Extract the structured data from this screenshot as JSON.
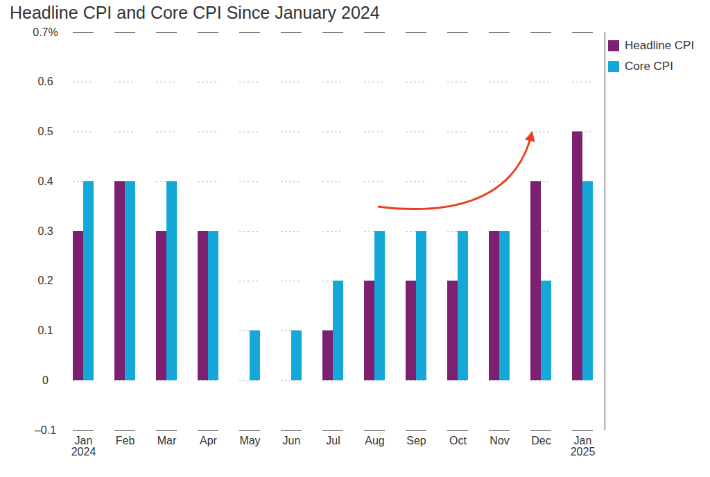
{
  "chart_data": {
    "type": "bar",
    "title": "Headline CPI and Core CPI Since January 2024",
    "categories": [
      "Jan 2024",
      "Feb",
      "Mar",
      "Apr",
      "May",
      "Jun",
      "Jul",
      "Aug",
      "Sep",
      "Oct",
      "Nov",
      "Dec",
      "Jan 2025"
    ],
    "series": [
      {
        "name": "Headline CPI",
        "color": "#7b2170",
        "values": [
          0.3,
          0.4,
          0.3,
          0.3,
          0,
          0,
          0.1,
          0.2,
          0.2,
          0.2,
          0.3,
          0.4,
          0.5
        ]
      },
      {
        "name": "Core CPI",
        "color": "#14a8d9",
        "values": [
          0.4,
          0.4,
          0.4,
          0.3,
          0.1,
          0.1,
          0.2,
          0.3,
          0.3,
          0.3,
          0.3,
          0.2,
          0.4
        ]
      }
    ],
    "ylim": [
      -0.1,
      0.7
    ],
    "yticks": [
      {
        "value": -0.1,
        "label": "–0.1"
      },
      0,
      0.1,
      0.2,
      0.3,
      0.4,
      0.5,
      0.6,
      {
        "value": 0.7,
        "label": "0.7%"
      }
    ],
    "grid": true,
    "legend": "right"
  }
}
